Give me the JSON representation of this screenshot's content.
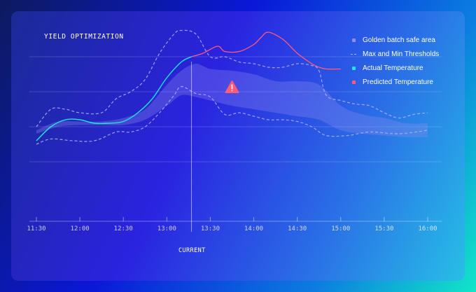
{
  "chart_data": {
    "type": "line",
    "title": "YIELD OPTIMIZATION",
    "x_ticks": [
      "11:30",
      "12:00",
      "12:30",
      "13:00",
      "13:30",
      "14:00",
      "14:30",
      "15:00",
      "15:30",
      "16:00"
    ],
    "current_label": "CURRENT",
    "current_time_minutes_after_1130": 107,
    "alert_time_minutes_after_1130": 135,
    "grid": true,
    "legend_placement": "top-right",
    "legend": [
      {
        "label": "Golden batch safe area",
        "style": "square",
        "color": "#8f8df0"
      },
      {
        "label": "Max and Min Thresholds",
        "style": "dash",
        "color": "#b5b3ff"
      },
      {
        "label": "Actual Temperature",
        "style": "square",
        "color": "#1fe6e6"
      },
      {
        "label": "Predicted Temperature",
        "style": "square",
        "color": "#ff5a78"
      }
    ],
    "ylim": [
      0,
      100
    ],
    "series": [
      {
        "name": "Golden batch safe area",
        "type": "band",
        "x": [
          0,
          15,
          30,
          45,
          60,
          75,
          90,
          100,
          110,
          120,
          135,
          150,
          165,
          180,
          195,
          210,
          225,
          240,
          255,
          270
        ],
        "upper": [
          38,
          43,
          43,
          43,
          45,
          50,
          64,
          72,
          76,
          73,
          72,
          70,
          66,
          66,
          64,
          52,
          47,
          45,
          42,
          42
        ],
        "lower": [
          36,
          40,
          41,
          41,
          41,
          44,
          52,
          58,
          57,
          55,
          52,
          50,
          48,
          46,
          44,
          38,
          36,
          35,
          34,
          34
        ]
      },
      {
        "name": "Max Threshold",
        "type": "dashed",
        "x": [
          0,
          10,
          20,
          30,
          45,
          55,
          65,
          75,
          85,
          95,
          100,
          110,
          120,
          130,
          140,
          150,
          160,
          170,
          180,
          190,
          195,
          200,
          210,
          220,
          230,
          240,
          250,
          260,
          270
        ],
        "values": [
          40,
          50,
          50,
          48,
          48,
          56,
          60,
          67,
          82,
          93,
          95,
          93,
          80,
          80,
          77,
          76,
          74,
          74,
          76,
          75,
          72,
          58,
          55,
          53,
          52,
          48,
          45,
          47,
          48
        ]
      },
      {
        "name": "Min Threshold",
        "type": "dashed",
        "x": [
          0,
          10,
          25,
          40,
          55,
          65,
          75,
          85,
          95,
          100,
          110,
          120,
          130,
          140,
          150,
          160,
          170,
          180,
          190,
          200,
          215,
          230,
          250,
          270
        ],
        "values": [
          30,
          33,
          32,
          32,
          37,
          37,
          40,
          48,
          58,
          63,
          59,
          57,
          47,
          48,
          46,
          44,
          44,
          43,
          40,
          35,
          35,
          37,
          36,
          38
        ]
      },
      {
        "name": "Actual Temperature",
        "type": "line",
        "x": [
          0,
          10,
          20,
          30,
          40,
          50,
          60,
          70,
          80,
          90,
          100,
          107
        ],
        "values": [
          32,
          40,
          44,
          44,
          42,
          42,
          43,
          48,
          56,
          68,
          77,
          80
        ]
      },
      {
        "name": "Predicted Temperature",
        "type": "line",
        "x": [
          107,
          115,
          125,
          130,
          140,
          150,
          155,
          160,
          170,
          180,
          190,
          195,
          200,
          210
        ],
        "values": [
          80,
          82,
          86,
          83,
          83,
          87,
          91,
          94,
          90,
          82,
          76,
          74,
          73,
          73
        ]
      }
    ]
  }
}
